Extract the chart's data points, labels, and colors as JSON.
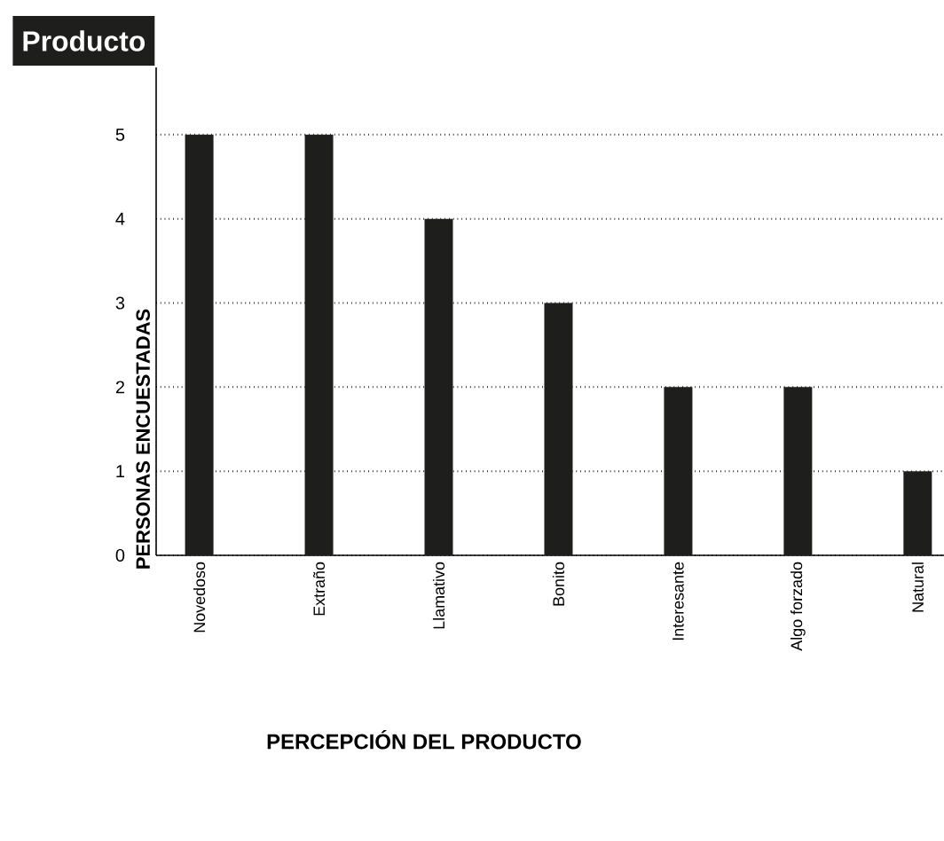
{
  "chart_data": {
    "type": "bar",
    "title": "Producto",
    "xlabel": "PERCEPCIÓN DEL PRODUCTO",
    "ylabel": "PERSONAS ENCUESTADAS",
    "categories": [
      "Novedoso",
      "Extraño",
      "Llamativo",
      "Bonito",
      "Interesante",
      "Algo forzado",
      "Natural"
    ],
    "values": [
      5,
      5,
      4,
      3,
      2,
      2,
      1
    ],
    "color": "#1e1e1c",
    "ylim": [
      0,
      5.8
    ],
    "yticks": [
      0,
      1,
      2,
      3,
      4,
      5
    ],
    "grid": "y"
  }
}
